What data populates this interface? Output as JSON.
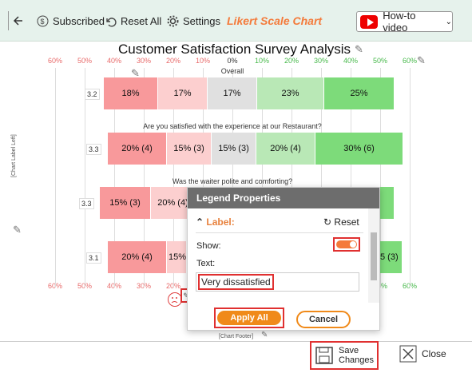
{
  "toolbar": {
    "subscribed": "Subscribed",
    "reset_all": "Reset All",
    "settings": "Settings",
    "likert": "Likert Scale Chart",
    "howto": "How-to video"
  },
  "chart_data": {
    "type": "bar",
    "title": "Customer Satisfaction Survey Analysis",
    "axis_ticks": [
      "60%",
      "50%",
      "40%",
      "30%",
      "20%",
      "10%",
      "0%",
      "10%",
      "20%",
      "30%",
      "40%",
      "50%",
      "60%"
    ],
    "series_colors": [
      "#f8999b",
      "#fccfcf",
      "#e0e0e0",
      "#b9e8b6",
      "#7ddb7a"
    ],
    "rows": [
      {
        "question": "Overall",
        "avg": "3.2",
        "segments": [
          "18%",
          "17%",
          "17%",
          "23%",
          "25%"
        ]
      },
      {
        "question": "Are you satisfied with the experience at our Restaurant?",
        "avg": "3.3",
        "segments": [
          "20% (4)",
          "15% (3)",
          "15% (3)",
          "20% (4)",
          "30% (6)"
        ]
      },
      {
        "question": "Was the waiter polite and comforting?",
        "avg": "3.3",
        "segments": [
          "15% (3)",
          "20% (4)",
          "",
          "",
          ""
        ]
      },
      {
        "question": "",
        "avg": "3.1",
        "segments": [
          "20% (4)",
          "15%",
          "",
          "",
          "5 (3)"
        ]
      }
    ],
    "side_label": "[Chart Label Left]",
    "footer_label": "[Chart Footer]"
  },
  "dialog": {
    "title": "Legend Properties",
    "section": "Label:",
    "reset": "Reset",
    "show": "Show:",
    "text": "Text:",
    "text_value": "Very dissatisfied",
    "apply": "Apply All",
    "cancel": "Cancel"
  },
  "bottom": {
    "save": "Save Changes",
    "close": "Close"
  }
}
